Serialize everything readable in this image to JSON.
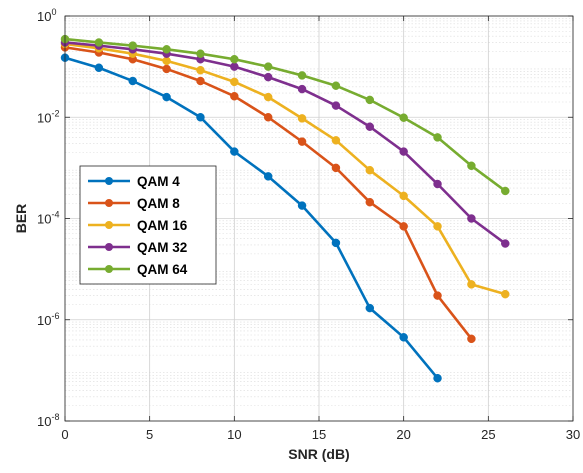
{
  "chart_data": {
    "type": "line",
    "title": "",
    "xlabel": "SNR (dB)",
    "ylabel": "BER",
    "xlim": [
      0,
      30
    ],
    "ylim": [
      1e-08,
      1
    ],
    "yscale": "log",
    "grid": true,
    "minor_grid": true,
    "legend_position": "left",
    "x_ticks": [
      0,
      5,
      10,
      15,
      20,
      25,
      30
    ],
    "x_tick_labels": [
      "0",
      "5",
      "10",
      "15",
      "20",
      "25",
      "30"
    ],
    "y_ticks": [
      1e-08,
      1e-06,
      0.0001,
      0.01,
      1
    ],
    "y_tick_labels": [
      {
        "base": "10",
        "exp": "-8"
      },
      {
        "base": "10",
        "exp": "-6"
      },
      {
        "base": "10",
        "exp": "-4"
      },
      {
        "base": "10",
        "exp": "-2"
      },
      {
        "base": "10",
        "exp": "0"
      }
    ],
    "series": [
      {
        "name": "QAM 4",
        "color": "#0072BD",
        "x": [
          0,
          2,
          4,
          6,
          8,
          10,
          12,
          14,
          16,
          18,
          20,
          22
        ],
        "values": [
          0.15,
          0.095,
          0.052,
          0.025,
          0.01,
          0.0021,
          0.00068,
          0.00018,
          3.3e-05,
          1.7e-06,
          4.5e-07,
          7e-08
        ]
      },
      {
        "name": "QAM 8",
        "color": "#D95319",
        "x": [
          0,
          2,
          4,
          6,
          8,
          10,
          12,
          14,
          16,
          18,
          20,
          22,
          24
        ],
        "values": [
          0.24,
          0.19,
          0.14,
          0.09,
          0.052,
          0.026,
          0.01,
          0.0033,
          0.001,
          0.00021,
          7e-05,
          3e-06,
          4.2e-07
        ]
      },
      {
        "name": "QAM 16",
        "color": "#EDB120",
        "x": [
          0,
          2,
          4,
          6,
          8,
          10,
          12,
          14,
          16,
          18,
          20,
          22,
          24,
          26
        ],
        "values": [
          0.28,
          0.23,
          0.18,
          0.13,
          0.085,
          0.05,
          0.025,
          0.0095,
          0.0035,
          0.0009,
          0.00028,
          7e-05,
          5e-06,
          3.2e-06
        ]
      },
      {
        "name": "QAM 32",
        "color": "#7E2F8E",
        "x": [
          0,
          2,
          4,
          6,
          8,
          10,
          12,
          14,
          16,
          18,
          20,
          22,
          24,
          26
        ],
        "values": [
          0.3,
          0.26,
          0.22,
          0.18,
          0.14,
          0.1,
          0.062,
          0.036,
          0.017,
          0.0065,
          0.0021,
          0.00048,
          0.0001,
          3.2e-05
        ]
      },
      {
        "name": "QAM 64",
        "color": "#77AC30",
        "x": [
          0,
          2,
          4,
          6,
          8,
          10,
          12,
          14,
          16,
          18,
          20,
          22,
          24,
          26
        ],
        "values": [
          0.35,
          0.3,
          0.26,
          0.22,
          0.18,
          0.14,
          0.1,
          0.067,
          0.042,
          0.022,
          0.0098,
          0.004,
          0.0011,
          0.00035
        ]
      }
    ]
  }
}
